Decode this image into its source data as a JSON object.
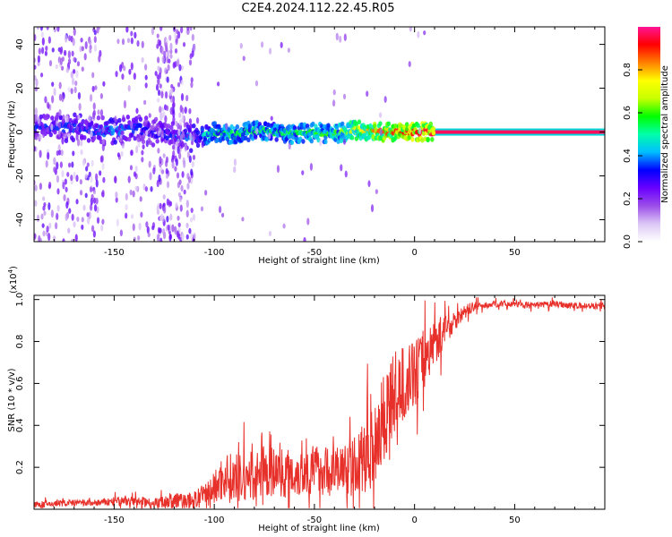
{
  "title": "C2E4.2024.112.22.45.R05",
  "chart_data": [
    {
      "type": "heatmap",
      "title": "C2E4.2024.112.22.45.R05",
      "xlabel": "Height of straight line (km)",
      "ylabel": "Frequency (Hz)",
      "xlim": [
        -190,
        95
      ],
      "ylim": [
        -50,
        48
      ],
      "xticks": [
        -150,
        -100,
        -50,
        0,
        50
      ],
      "yticks": [
        -40,
        -20,
        0,
        20,
        40
      ],
      "colorbar": {
        "label": "Normalized spectral amplitude",
        "range": [
          0.0,
          1.0
        ],
        "ticks": [
          0.0,
          0.2,
          0.4,
          0.6,
          0.8
        ],
        "colors": [
          "#ffffff",
          "#dcc8f5",
          "#9b4de8",
          "#6a00ff",
          "#0000ff",
          "#00bfff",
          "#00ffaa",
          "#00ff00",
          "#c8ff00",
          "#ffff00",
          "#ff8000",
          "#ff0000",
          "#ff1493"
        ]
      },
      "ridge": {
        "x": [
          -170,
          -160,
          -150,
          -140,
          -130,
          -110,
          -100,
          -90,
          -80,
          -70,
          -60,
          -50,
          -40,
          -30,
          -20,
          -10,
          0,
          10,
          20,
          50,
          95
        ],
        "frequency": [
          2,
          1,
          0,
          2,
          0,
          -3,
          0,
          -1,
          1,
          0,
          -1,
          0,
          -1,
          1,
          0,
          0,
          0,
          0,
          0,
          0,
          0
        ],
        "amplitude": [
          0.35,
          0.35,
          0.4,
          0.35,
          0.3,
          0.4,
          0.55,
          0.55,
          0.55,
          0.55,
          0.55,
          0.6,
          0.6,
          0.7,
          0.85,
          0.9,
          0.92,
          0.95,
          0.95,
          0.95,
          0.95
        ]
      },
      "grid": false
    },
    {
      "type": "line",
      "xlabel": "Height of straight line (km)",
      "ylabel": "SNR (10 * v/v)",
      "yscale_label": "(x10",
      "yscale_exp": "4",
      "xlim": [
        -190,
        95
      ],
      "ylim": [
        0,
        1.02
      ],
      "xticks": [
        -150,
        -100,
        -50,
        0,
        50
      ],
      "yticks": [
        0.2,
        0.4,
        0.6,
        0.8,
        1.0
      ],
      "series": [
        {
          "color": "#e8302a",
          "x": [
            -190,
            -175,
            -160,
            -145,
            -130,
            -120,
            -110,
            -105,
            -100,
            -95,
            -90,
            -80,
            -70,
            -60,
            -50,
            -40,
            -30,
            -25,
            -20,
            -15,
            -10,
            -5,
            0,
            5,
            10,
            15,
            20,
            25,
            30,
            35,
            40,
            50,
            60,
            70,
            80,
            95
          ],
          "values": [
            0.02,
            0.03,
            0.03,
            0.04,
            0.03,
            0.04,
            0.04,
            0.06,
            0.1,
            0.16,
            0.14,
            0.16,
            0.18,
            0.17,
            0.19,
            0.18,
            0.2,
            0.25,
            0.32,
            0.45,
            0.55,
            0.6,
            0.65,
            0.72,
            0.8,
            0.85,
            0.9,
            0.94,
            0.97,
            0.97,
            0.98,
            0.98,
            0.97,
            0.98,
            0.97,
            0.97
          ],
          "noise": [
            0.02,
            0.02,
            0.02,
            0.03,
            0.03,
            0.05,
            0.05,
            0.08,
            0.1,
            0.15,
            0.15,
            0.15,
            0.15,
            0.15,
            0.15,
            0.15,
            0.18,
            0.22,
            0.28,
            0.3,
            0.25,
            0.22,
            0.2,
            0.18,
            0.14,
            0.1,
            0.06,
            0.04,
            0.03,
            0.02,
            0.02,
            0.02,
            0.02,
            0.02,
            0.02,
            0.02
          ]
        }
      ],
      "grid": false
    }
  ]
}
